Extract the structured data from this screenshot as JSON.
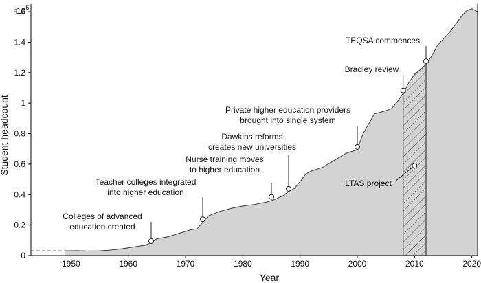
{
  "chart_data": {
    "type": "area",
    "xlabel": "Year",
    "ylabel": "Student headcount",
    "y_multiplier_label": "·10",
    "y_multiplier_exponent": "6",
    "xlim": [
      1943,
      2021
    ],
    "ylim": [
      0,
      1.65
    ],
    "x_ticks": [
      1950,
      1960,
      1970,
      1980,
      1990,
      2000,
      2010,
      2020
    ],
    "x_tick_labels": [
      "1950",
      "1960",
      "1970",
      "1980",
      "1990",
      "2000",
      "2010",
      "2020"
    ],
    "y_ticks": [
      0,
      0.2,
      0.4,
      0.6,
      0.8,
      1.0,
      1.2,
      1.4,
      1.6
    ],
    "y_tick_labels": [
      "0",
      "0.2",
      "0.4",
      "0.6",
      "0.8",
      "1",
      "1.2",
      "1.4",
      "1.6"
    ],
    "grid": false,
    "pre_series_dashed": {
      "x": [
        1943,
        1949
      ],
      "y": [
        0.031,
        0.031
      ]
    },
    "series": [
      {
        "x": [
          1949,
          1951,
          1953,
          1955,
          1957,
          1959,
          1961,
          1963,
          1964,
          1965,
          1967,
          1969,
          1971,
          1972,
          1974,
          1976,
          1978,
          1980,
          1982,
          1984,
          1985,
          1986,
          1987,
          1988,
          1989,
          1990,
          1991,
          1992,
          1994,
          1996,
          1998,
          2000,
          2001,
          2003,
          2005,
          2006,
          2007,
          2008,
          2009,
          2010,
          2011,
          2012,
          2013,
          2014,
          2016,
          2018,
          2019,
          2020,
          2021
        ],
        "values": [
          0.031,
          0.032,
          0.03,
          0.031,
          0.036,
          0.045,
          0.057,
          0.068,
          0.085,
          0.11,
          0.124,
          0.147,
          0.17,
          0.175,
          0.26,
          0.29,
          0.31,
          0.325,
          0.335,
          0.35,
          0.36,
          0.375,
          0.392,
          0.42,
          0.44,
          0.485,
          0.535,
          0.555,
          0.58,
          0.625,
          0.67,
          0.695,
          0.8,
          0.93,
          0.95,
          0.965,
          1.01,
          1.065,
          1.135,
          1.19,
          1.22,
          1.255,
          1.31,
          1.38,
          1.46,
          1.56,
          1.605,
          1.62,
          1.6
        ]
      }
    ],
    "hatched_region": {
      "x_start": 2008,
      "x_end": 2012,
      "label": "LTAS project",
      "marker": {
        "x": 2010,
        "y": 0.59
      }
    },
    "annotations": [
      {
        "lines": [
          "Colleges of advanced",
          "education created"
        ],
        "x": 1964,
        "y": 0.095
      },
      {
        "lines": [
          "Teacher colleges integrated",
          "into higher education"
        ],
        "x": 1973,
        "y": 0.238
      },
      {
        "lines": [
          "Nurse training moves",
          "to higher education"
        ],
        "x": 1985,
        "y": 0.385
      },
      {
        "lines": [
          "Dawkins reforms",
          "creates new universities"
        ],
        "x": 1988,
        "y": 0.438
      },
      {
        "lines": [
          "Private higher education providers",
          "brought into single system"
        ],
        "x": 2000,
        "y": 0.713
      },
      {
        "lines": [
          "Bradley review"
        ],
        "x": 2008,
        "y": 1.083
      },
      {
        "lines": [
          "TEQSA commences"
        ],
        "x": 2012,
        "y": 1.275
      }
    ],
    "colors": {
      "fill": "#d3d3d3",
      "stroke": "#3a3a3a",
      "text": "#111111"
    }
  }
}
